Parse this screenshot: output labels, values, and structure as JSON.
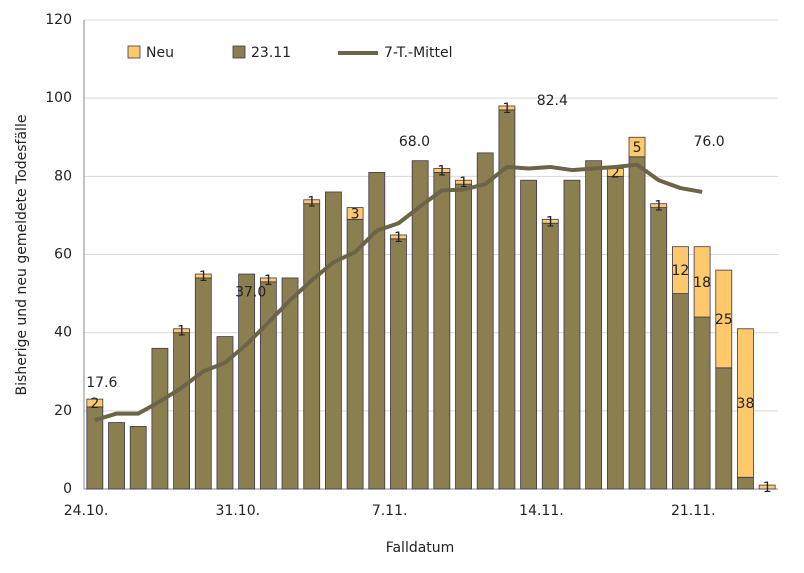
{
  "chart_data": {
    "type": "bar",
    "x_label": "Falldatum",
    "y_label": "Bisherige und neu gemeldete Todesfälle",
    "categories": [
      "24.10.",
      null,
      null,
      null,
      null,
      null,
      null,
      "31.10.",
      null,
      null,
      null,
      null,
      null,
      null,
      "7.11.",
      null,
      null,
      null,
      null,
      null,
      null,
      "14.11.",
      null,
      null,
      null,
      null,
      null,
      null,
      "21.11.",
      null,
      null,
      null
    ],
    "ylim": [
      0,
      120
    ],
    "yticks": [
      0,
      20,
      40,
      60,
      80,
      100,
      120
    ],
    "grid": true,
    "stacked": true,
    "series": [
      {
        "name": "23.11",
        "color": "#8c7f4f",
        "values": [
          21,
          17,
          16,
          36,
          40,
          54,
          39,
          55,
          53,
          54,
          73,
          76,
          69,
          81,
          64,
          84,
          81,
          78,
          86,
          97,
          79,
          68,
          79,
          84,
          80,
          85,
          72,
          50,
          44,
          31,
          3,
          0
        ]
      },
      {
        "name": "Neu",
        "color": "#fdc96a",
        "values": [
          2,
          0,
          0,
          0,
          1,
          1,
          0,
          0,
          1,
          0,
          1,
          0,
          3,
          0,
          1,
          0,
          1,
          1,
          0,
          1,
          0,
          1,
          0,
          0,
          2,
          5,
          1,
          12,
          18,
          25,
          38,
          1
        ]
      },
      {
        "name": "7-T.-Mittel",
        "type": "line",
        "color": "#6b6449",
        "values": [
          17.6,
          19.3,
          19.3,
          22.4,
          25.9,
          30.1,
          32.3,
          37.0,
          42.6,
          48.3,
          53.4,
          58.0,
          60.6,
          66.1,
          68.0,
          72.3,
          76.4,
          76.6,
          78.0,
          82.4,
          82.0,
          82.4,
          81.6,
          82.0,
          82.4,
          83.0,
          79.0,
          77.0,
          76.0,
          null,
          null,
          null
        ],
        "value_labels": [
          "17.6",
          null,
          null,
          null,
          null,
          null,
          null,
          "37.0",
          null,
          null,
          null,
          null,
          null,
          null,
          "68.0",
          null,
          null,
          null,
          null,
          null,
          null,
          "82.4",
          null,
          null,
          null,
          null,
          null,
          null,
          "76.0",
          null,
          null,
          null
        ]
      }
    ],
    "legend_order": [
      "Neu",
      "23.11",
      "7-T.-Mittel"
    ]
  }
}
